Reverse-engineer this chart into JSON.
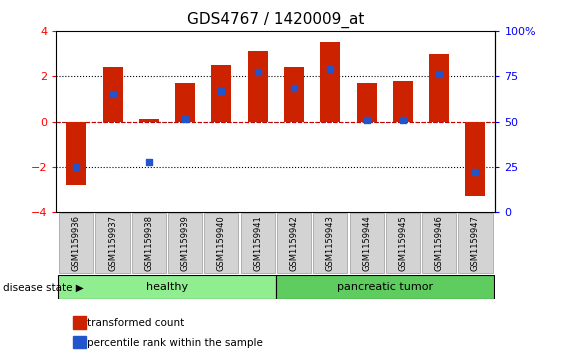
{
  "title": "GDS4767 / 1420009_at",
  "samples": [
    "GSM1159936",
    "GSM1159937",
    "GSM1159938",
    "GSM1159939",
    "GSM1159940",
    "GSM1159941",
    "GSM1159942",
    "GSM1159943",
    "GSM1159944",
    "GSM1159945",
    "GSM1159946",
    "GSM1159947"
  ],
  "bar_values": [
    -2.8,
    2.4,
    0.1,
    1.7,
    2.5,
    3.1,
    2.4,
    3.5,
    1.7,
    1.8,
    3.0,
    -3.3
  ],
  "blue_dot_values": [
    -2.0,
    1.2,
    -1.8,
    0.1,
    1.35,
    2.2,
    1.5,
    2.3,
    0.05,
    0.05,
    2.1,
    -2.2
  ],
  "bar_color": "#cc2200",
  "blue_color": "#2255cc",
  "ylim": [
    -4,
    4
  ],
  "yticks_left": [
    -4,
    -2,
    0,
    2,
    4
  ],
  "yticks_right": [
    0,
    25,
    50,
    75,
    100
  ],
  "hline_color": "#cc0000",
  "dotted_lines": [
    -2,
    0,
    2
  ],
  "healthy_label": "healthy",
  "tumor_label": "pancreatic tumor",
  "healthy_count": 6,
  "tumor_count": 6,
  "disease_state_label": "disease state",
  "legend_bar_label": "transformed count",
  "legend_dot_label": "percentile rank within the sample",
  "healthy_color": "#90ee90",
  "tumor_color": "#5fcc5f",
  "sample_box_color": "#d3d3d3",
  "title_fontsize": 11,
  "tick_fontsize": 8
}
